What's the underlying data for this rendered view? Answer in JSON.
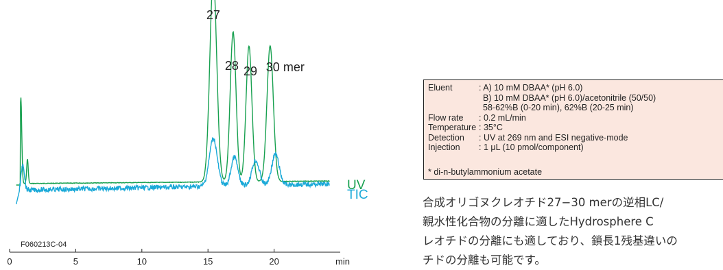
{
  "chart_data": {
    "type": "line",
    "xlabel": "min",
    "xlim": [
      0,
      25
    ],
    "x_ticks": [
      "0",
      "5",
      "10",
      "15",
      "20"
    ],
    "sample_id": "F060213C-04",
    "peak_labels": [
      {
        "text": "27",
        "x": 15.4
      },
      {
        "text": "28",
        "x": 16.9
      },
      {
        "text": "29",
        "x": 18.1
      },
      {
        "text": "30 mer",
        "x": 19.7
      }
    ],
    "series": [
      {
        "name": "UV",
        "color": "#17a04f",
        "peaks": [
          {
            "x": 0.85,
            "height": 0.42,
            "width": 0.07
          },
          {
            "x": 1.35,
            "height": 0.12,
            "width": 0.06
          },
          {
            "x": 15.4,
            "height": 1.0,
            "width": 0.26
          },
          {
            "x": 16.9,
            "height": 0.73,
            "width": 0.22
          },
          {
            "x": 18.1,
            "height": 0.66,
            "width": 0.22
          },
          {
            "x": 19.7,
            "height": 0.66,
            "width": 0.24
          }
        ]
      },
      {
        "name": "TIC",
        "color": "#1aa9d8",
        "peaks": [
          {
            "x": 1.0,
            "height": 0.28,
            "width": 0.12
          },
          {
            "x": 15.4,
            "height": 0.5,
            "width": 0.3
          },
          {
            "x": 17.0,
            "height": 0.3,
            "width": 0.25
          },
          {
            "x": 18.6,
            "height": 0.26,
            "width": 0.28
          },
          {
            "x": 20.1,
            "height": 0.32,
            "width": 0.28
          }
        ]
      }
    ]
  },
  "conditions": {
    "rows": [
      {
        "label": "Eluent",
        "value": ": A) 10 mM DBAA* (pH 6.0)"
      },
      {
        "label": "",
        "value": "B) 10 mM DBAA* (pH 6.0)/acetonitrile (50/50)"
      },
      {
        "label": "",
        "value": "58-62%B (0-20 min), 62%B (20-25 min)"
      },
      {
        "label": "Flow rate",
        "value": ": 0.2 mL/min"
      },
      {
        "label": "Temperature",
        "value": ": 35°C"
      },
      {
        "label": "Detection",
        "value": ": UV at 269 nm and ESI negative-mode"
      },
      {
        "label": "Injection",
        "value": ": 1 μL (10 pmol/component)"
      }
    ],
    "note": "* di-n-butylammonium acetate"
  },
  "description": {
    "lines": [
      "合成オリゴヌクレオチド27−30 merの逆相LC/",
      "親水性化合物の分離に適したHydrosphere C",
      "レオチドの分離にも適しており、鎖長1残基違いの",
      "チドの分離も可能です。"
    ]
  }
}
